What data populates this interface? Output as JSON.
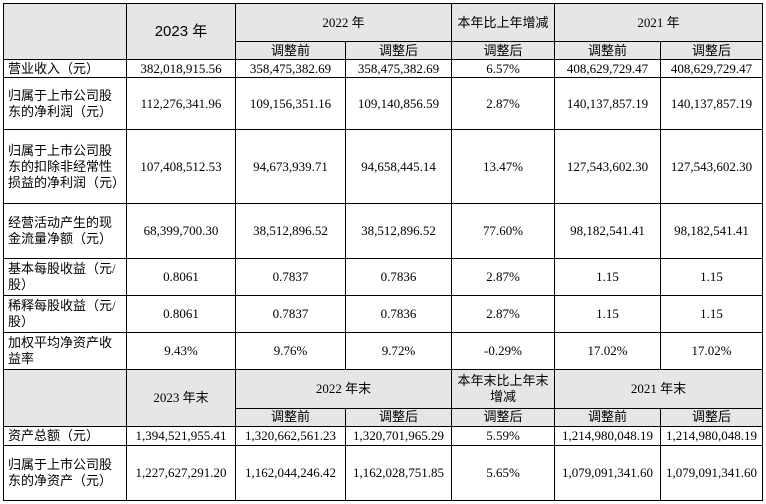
{
  "header1": {
    "y2023": "2023 年",
    "y2022": "2022 年",
    "change": "本年比上年增减",
    "y2021": "2021 年",
    "sub_before": "调整前",
    "sub_after": "调整后",
    "sub_change": "调整后"
  },
  "rows1": [
    {
      "label": "营业收入（元）",
      "v2023": "382,018,915.56",
      "v2022_before": "358,475,382.69",
      "v2022_after": "358,475,382.69",
      "change": "6.57%",
      "v2021_before": "408,629,729.47",
      "v2021_after": "408,629,729.47"
    },
    {
      "label": "归属于上市公司股东的净利润（元）",
      "v2023": "112,276,341.96",
      "v2022_before": "109,156,351.16",
      "v2022_after": "109,140,856.59",
      "change": "2.87%",
      "v2021_before": "140,137,857.19",
      "v2021_after": "140,137,857.19"
    },
    {
      "label": "归属于上市公司股东的扣除非经常性损益的净利润（元）",
      "v2023": "107,408,512.53",
      "v2022_before": "94,673,939.71",
      "v2022_after": "94,658,445.14",
      "change": "13.47%",
      "v2021_before": "127,543,602.30",
      "v2021_after": "127,543,602.30"
    },
    {
      "label": "经营活动产生的现金流量净额（元）",
      "v2023": "68,399,700.30",
      "v2022_before": "38,512,896.52",
      "v2022_after": "38,512,896.52",
      "change": "77.60%",
      "v2021_before": "98,182,541.41",
      "v2021_after": "98,182,541.41"
    },
    {
      "label": "基本每股收益（元/股）",
      "v2023": "0.8061",
      "v2022_before": "0.7837",
      "v2022_after": "0.7836",
      "change": "2.87%",
      "v2021_before": "1.15",
      "v2021_after": "1.15"
    },
    {
      "label": "稀释每股收益（元/股）",
      "v2023": "0.8061",
      "v2022_before": "0.7837",
      "v2022_after": "0.7836",
      "change": "2.87%",
      "v2021_before": "1.15",
      "v2021_after": "1.15"
    },
    {
      "label": "加权平均净资产收益率",
      "v2023": "9.43%",
      "v2022_before": "9.76%",
      "v2022_after": "9.72%",
      "change": "-0.29%",
      "v2021_before": "17.02%",
      "v2021_after": "17.02%"
    }
  ],
  "header2": {
    "y2023": "2023 年末",
    "y2022": "2022 年末",
    "change": "本年末比上年末增减",
    "y2021": "2021 年末",
    "sub_before": "调整前",
    "sub_after": "调整后",
    "sub_change": "调整后"
  },
  "rows2": [
    {
      "label": "资产总额（元）",
      "v2023": "1,394,521,955.41",
      "v2022_before": "1,320,662,561.23",
      "v2022_after": "1,320,701,965.29",
      "change": "5.59%",
      "v2021_before": "1,214,980,048.19",
      "v2021_after": "1,214,980,048.19"
    },
    {
      "label": "归属于上市公司股东的净资产（元）",
      "v2023": "1,227,627,291.20",
      "v2022_before": "1,162,044,246.42",
      "v2022_after": "1,162,028,751.85",
      "change": "5.65%",
      "v2021_before": "1,079,091,341.60",
      "v2021_after": "1,079,091,341.60"
    }
  ]
}
